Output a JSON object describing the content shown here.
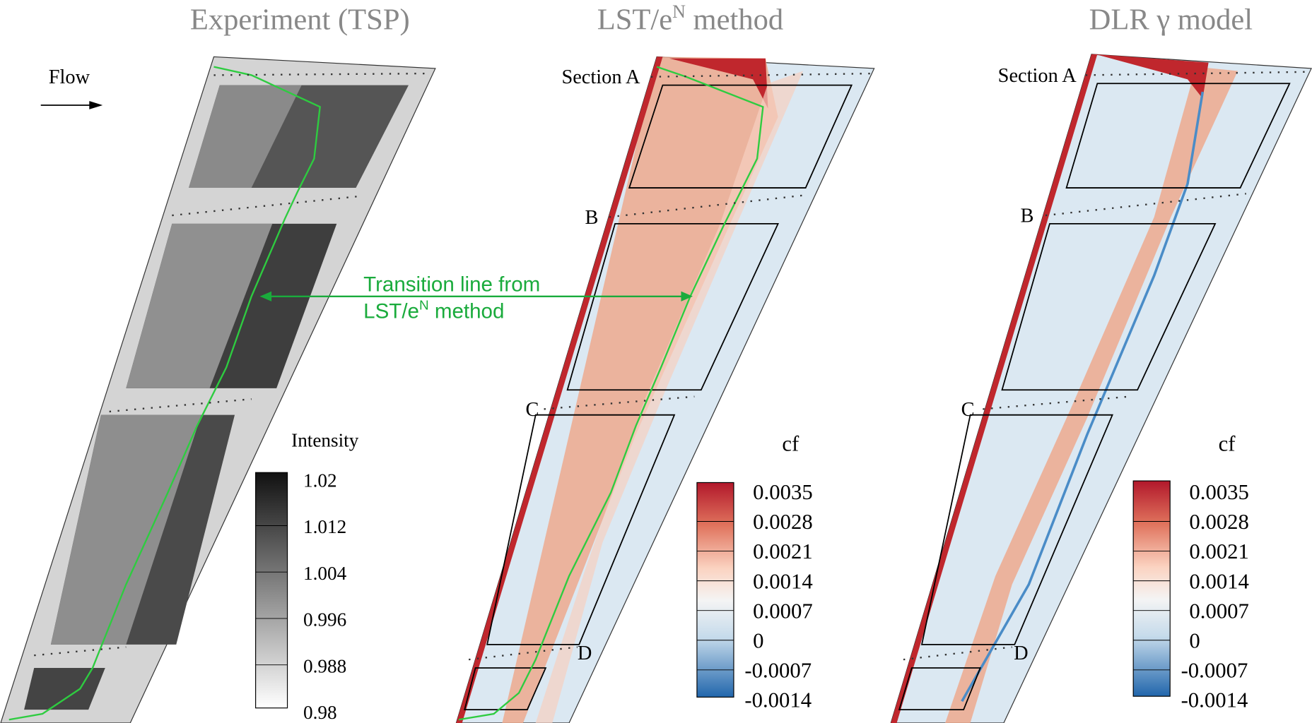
{
  "panels": [
    {
      "title": {
        "text": "Experiment (TSP)"
      }
    },
    {
      "title": {
        "text": "LST/e",
        "sup": "N",
        "rest": " method"
      },
      "sections": [
        "Section A",
        "B",
        "C",
        "D"
      ]
    },
    {
      "title": {
        "text": "DLR γ model"
      },
      "sections": [
        "Section A",
        "B",
        "C",
        "D"
      ]
    }
  ],
  "flow_label": "Flow",
  "annotation": {
    "line1": "Transition line from",
    "line2": {
      "text": "LST/e",
      "sup": "N",
      "rest": " method"
    }
  },
  "colorbars": [
    {
      "title": "Intensity",
      "labels": [
        "1.02",
        "1.012",
        "1.004",
        "0.996",
        "0.988",
        "0.98"
      ]
    },
    {
      "title": "cf",
      "labels": [
        "0.0035",
        "0.0028",
        "0.0021",
        "0.0014",
        "0.0007",
        "0",
        "-0.0007",
        "-0.0014"
      ]
    },
    {
      "title": "cf",
      "labels": [
        "0.0035",
        "0.0028",
        "0.0021",
        "0.0014",
        "0.0007",
        "0",
        "-0.0007",
        "-0.0014"
      ]
    }
  ]
}
